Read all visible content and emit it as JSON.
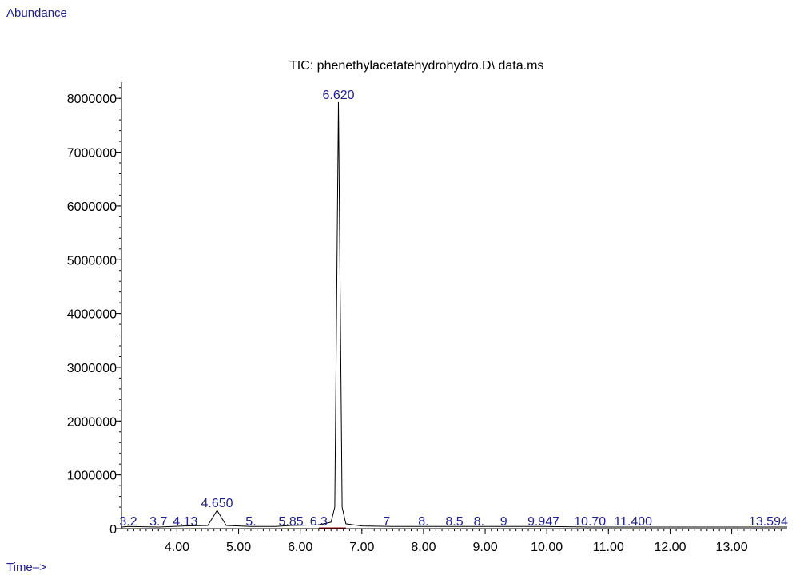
{
  "header": {
    "y_caption": "Abundance",
    "x_caption": "Time–>"
  },
  "chart_data": {
    "type": "line",
    "title": "TIC: phenethylacetatehydrohydro.D\\ data.ms",
    "xlabel": "Time–>",
    "ylabel": "Abundance",
    "xlim": [
      3.1,
      13.9
    ],
    "ylim": [
      0,
      8300000
    ],
    "x_ticks": [
      4.0,
      5.0,
      6.0,
      7.0,
      8.0,
      9.0,
      10.0,
      11.0,
      12.0,
      13.0
    ],
    "x_tick_labels": [
      "4.00",
      "5.00",
      "6.00",
      "7.00",
      "8.00",
      "9.00",
      "10.00",
      "11.00",
      "12.00",
      "13.00"
    ],
    "y_ticks": [
      0,
      1000000,
      2000000,
      3000000,
      4000000,
      5000000,
      6000000,
      7000000,
      8000000
    ],
    "y_tick_labels": [
      "0",
      "1000000",
      "2000000",
      "3000000",
      "4000000",
      "5000000",
      "6000000",
      "7000000",
      "8000000"
    ],
    "series": [
      {
        "x": [
          3.1,
          3.21,
          3.7,
          4.135,
          4.5,
          4.65,
          4.8,
          5.2,
          5.6,
          5.85,
          6.3,
          6.5,
          6.56,
          6.62,
          6.68,
          6.74,
          7.0,
          7.5,
          8.0,
          8.5,
          9.0,
          9.5,
          9.947,
          10.7,
          11.4,
          12.0,
          13.0,
          13.594,
          13.9
        ],
        "y": [
          30000,
          40000,
          30000,
          50000,
          60000,
          340000,
          60000,
          40000,
          40000,
          60000,
          70000,
          120000,
          400000,
          7930000,
          400000,
          90000,
          50000,
          40000,
          40000,
          40000,
          40000,
          40000,
          40000,
          30000,
          30000,
          30000,
          30000,
          30000,
          30000
        ]
      }
    ],
    "peak_labels": [
      {
        "x": 6.62,
        "y": 7930000,
        "text": "6.620"
      },
      {
        "x": 4.65,
        "y": 340000,
        "text": "4.650"
      },
      {
        "x": 3.21,
        "y": 0,
        "text": "3.2"
      },
      {
        "x": 3.7,
        "y": 0,
        "text": "3.7"
      },
      {
        "x": 4.135,
        "y": 0,
        "text": "4.13"
      },
      {
        "x": 5.2,
        "y": 0,
        "text": "5."
      },
      {
        "x": 5.85,
        "y": 0,
        "text": "5.85"
      },
      {
        "x": 6.3,
        "y": 0,
        "text": "6.3"
      },
      {
        "x": 7.4,
        "y": 0,
        "text": "7"
      },
      {
        "x": 8.0,
        "y": 0,
        "text": "8."
      },
      {
        "x": 8.5,
        "y": 0,
        "text": "8.5"
      },
      {
        "x": 8.9,
        "y": 0,
        "text": "8."
      },
      {
        "x": 9.3,
        "y": 0,
        "text": "9"
      },
      {
        "x": 9.947,
        "y": 0,
        "text": "9.947"
      },
      {
        "x": 10.7,
        "y": 0,
        "text": "10.70"
      },
      {
        "x": 11.4,
        "y": 0,
        "text": "11.400"
      },
      {
        "x": 13.594,
        "y": 0,
        "text": "13.594"
      }
    ]
  },
  "colors": {
    "trace": "#000000",
    "labels": "#1f1f8f",
    "axis": "#000000",
    "baseline_marker": "#8b0000"
  }
}
